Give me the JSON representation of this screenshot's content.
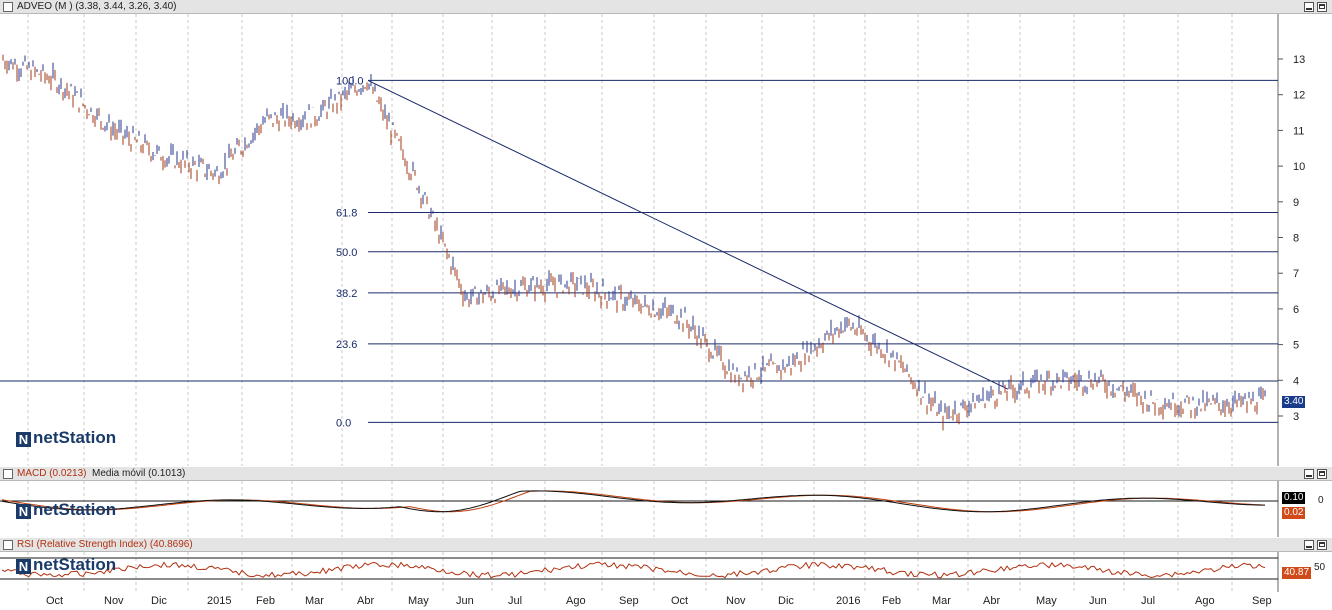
{
  "main_pane": {
    "title": "ADVEO (M ) (3.38, 3.44, 3.26, 3.40)",
    "last_price_badge": "3.40",
    "y_ticks": [
      "13",
      "12",
      "11",
      "10",
      "9",
      "8",
      "7",
      "6",
      "5",
      "4",
      "3"
    ],
    "fib_levels": [
      "100.0",
      "61.8",
      "50.0",
      "38.2",
      "23.6",
      "0.0"
    ],
    "logo_text": "netStation"
  },
  "macd_pane": {
    "title": "MACD (0.0213)",
    "title2": "Media móvil (0.1013)",
    "zero_label": "0",
    "badge_signal": "0.10",
    "badge_macd": "0.02",
    "logo_text": "netStation"
  },
  "rsi_pane": {
    "title": "RSI (Relative Strength Index) (40.8696)",
    "level_label": "50",
    "badge": "40.87",
    "logo_text": "netStation"
  },
  "x_axis": {
    "labels": [
      "Oct",
      "Nov",
      "Dic",
      "2015",
      "Feb",
      "Mar",
      "Abr",
      "May",
      "Jun",
      "Jul",
      "Ago",
      "Sep",
      "Oct",
      "Nov",
      "Dic",
      "2016",
      "Feb",
      "Mar",
      "Abr",
      "May",
      "Jun",
      "Jul",
      "Ago",
      "Sep"
    ]
  },
  "colors": {
    "up": "#2a3a8c",
    "down": "#a03a1a",
    "line": "#1a2a6a",
    "macd_badge": "#000000",
    "signal_badge": "#d04a1a",
    "rsi_badge": "#d04a1a"
  },
  "chart_data": {
    "type": "line",
    "series": [
      {
        "name": "ADVEO (M )",
        "x": [
          "Oct",
          "Nov",
          "Dic",
          "2015",
          "Feb",
          "Mar",
          "Abr",
          "May",
          "Jun",
          "Jul",
          "Ago",
          "Sep",
          "Oct",
          "Nov",
          "Dic",
          "2016",
          "Feb",
          "Mar",
          "Abr",
          "May",
          "Jun",
          "Jul",
          "Ago",
          "Sep"
        ],
        "values": [
          12.4,
          11.0,
          10.3,
          9.8,
          11.3,
          11.4,
          12.4,
          9.5,
          6.3,
          6.6,
          6.7,
          6.2,
          5.8,
          4.1,
          4.4,
          5.6,
          4.7,
          3.0,
          3.6,
          4.0,
          4.0,
          3.4,
          3.3,
          3.4
        ]
      }
    ],
    "ylim": [
      2.5,
      13.5
    ],
    "grid": true
  }
}
